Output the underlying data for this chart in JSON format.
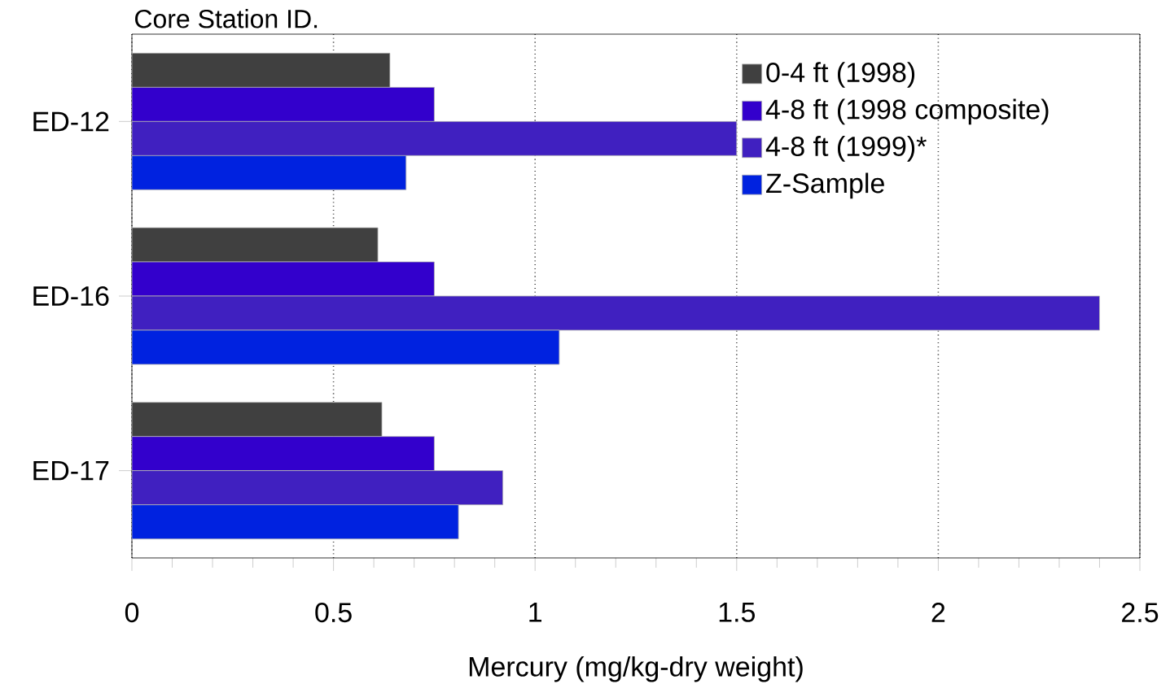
{
  "chart_data": {
    "type": "bar",
    "orientation": "horizontal",
    "ylabel": "Core Station ID.",
    "xlabel": "Mercury (mg/kg-dry weight)",
    "categories": [
      "ED-12",
      "ED-16",
      "ED-17"
    ],
    "series": [
      {
        "name": "0-4 ft (1998)",
        "color": "#404040",
        "values": [
          0.64,
          0.61,
          0.62
        ]
      },
      {
        "name": "4-8 ft (1998 composite)",
        "color": "#3300cc",
        "values": [
          0.75,
          0.75,
          0.75
        ]
      },
      {
        "name": "4-8 ft (1999)*",
        "color": "#4020c0",
        "values": [
          1.5,
          2.4,
          0.92
        ]
      },
      {
        "name": "Z-Sample",
        "color": "#0022e0",
        "values": [
          0.68,
          1.06,
          0.81
        ]
      }
    ],
    "xlim": [
      0,
      2.5
    ],
    "xticks": [
      0,
      0.5,
      1,
      1.5,
      2,
      2.5
    ],
    "grid": "x",
    "legend": "top right"
  }
}
